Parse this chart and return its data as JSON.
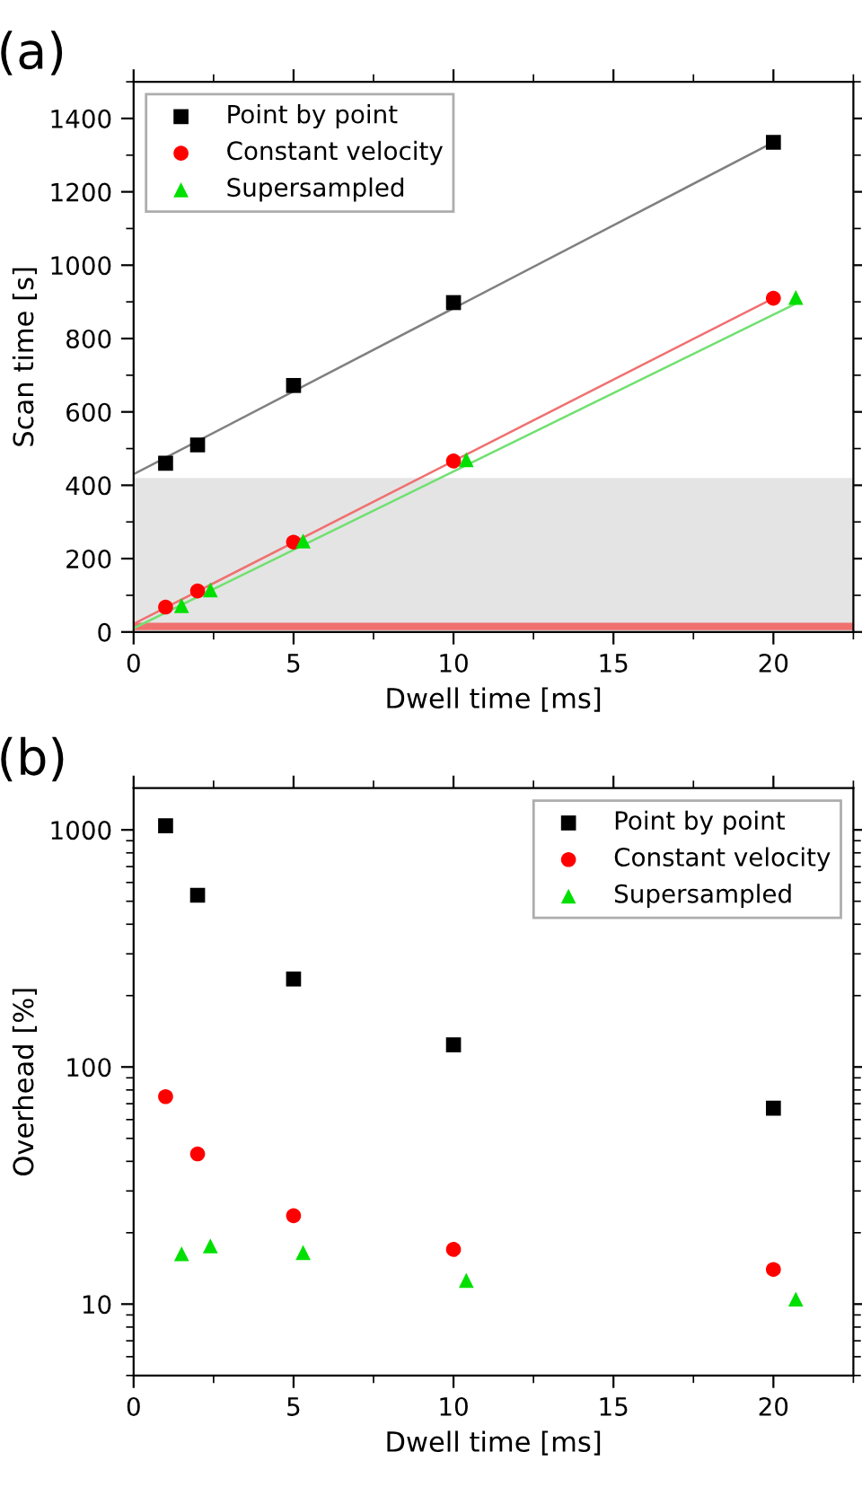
{
  "chart_data": [
    {
      "type": "scatter",
      "title": "(a)",
      "xlabel": "Dwell time [ms]",
      "ylabel": "Scan time [s]",
      "xlim": [
        0,
        22.5
      ],
      "xticks": [
        0,
        5,
        10,
        15,
        20
      ],
      "ylim": [
        0,
        1500
      ],
      "yticks": [
        0,
        200,
        400,
        600,
        800,
        1000,
        1200,
        1400
      ],
      "legend": "top left",
      "grid": false,
      "bands": [
        {
          "axis": "y",
          "from": 0,
          "to": 420,
          "color": "#e4e4e4"
        },
        {
          "axis": "y",
          "from": 5,
          "to": 25,
          "color": "#f07070"
        }
      ],
      "series": [
        {
          "type": "line",
          "color": "#808080",
          "x": [
            0,
            20
          ],
          "values": [
            430,
            1335
          ],
          "marker": "none",
          "line_style": "solid"
        },
        {
          "type": "line",
          "color": "#f07070",
          "x": [
            0,
            20
          ],
          "values": [
            22,
            910
          ],
          "marker": "none",
          "line_style": "solid"
        },
        {
          "type": "line",
          "color": "#70e070",
          "x": [
            0,
            20.7
          ],
          "values": [
            10,
            895
          ],
          "marker": "none",
          "line_style": "solid"
        },
        {
          "name": "Point by point",
          "color": "#000000",
          "marker": "square",
          "x": [
            1,
            2,
            5,
            10,
            20
          ],
          "values": [
            460,
            510,
            672,
            898,
            1335
          ]
        },
        {
          "name": "Constant velocity",
          "color": "#ff0000",
          "marker": "circle",
          "x": [
            1,
            2,
            5,
            10,
            20
          ],
          "values": [
            68,
            112,
            245,
            466,
            910
          ]
        },
        {
          "name": "Supersampled",
          "color": "#00e000",
          "marker": "triangle",
          "x": [
            1.5,
            2.4,
            5.3,
            10.4,
            20.7
          ],
          "values": [
            72,
            115,
            248,
            470,
            912
          ]
        }
      ]
    },
    {
      "type": "scatter",
      "title": "(b)",
      "xlabel": "Dwell time [ms]",
      "ylabel": "Overhead [%]",
      "log": "y",
      "xlim": [
        0,
        22.5
      ],
      "xticks": [
        0,
        5,
        10,
        15,
        20
      ],
      "ylim": [
        5,
        1500
      ],
      "yticks": [
        10,
        100,
        1000
      ],
      "legend": "top right",
      "grid": false,
      "series": [
        {
          "name": "Point by point",
          "color": "#000000",
          "marker": "square",
          "x": [
            1,
            2,
            5,
            10,
            20
          ],
          "values": [
            1040,
            530,
            235,
            124,
            67
          ]
        },
        {
          "name": "Constant velocity",
          "color": "#ff0000",
          "marker": "circle",
          "x": [
            1,
            2,
            5,
            10,
            20
          ],
          "values": [
            75,
            43,
            23.6,
            17,
            14
          ]
        },
        {
          "name": "Supersampled",
          "color": "#00e000",
          "marker": "triangle",
          "x": [
            1.5,
            2.4,
            5.3,
            10.4,
            20.7
          ],
          "values": [
            16.3,
            17.6,
            16.5,
            12.6,
            10.5
          ]
        }
      ]
    }
  ]
}
